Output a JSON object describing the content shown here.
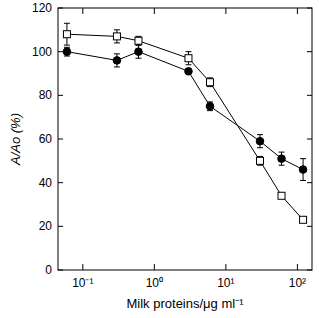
{
  "chart_data": {
    "type": "line",
    "x_label": "Milk proteins/μg ml⁻¹",
    "y_label": "A/Ao (%)",
    "log": "x",
    "xlim": [
      0.045,
      160
    ],
    "xticks": [
      {
        "value": 0.1,
        "label": "10⁻¹"
      },
      {
        "value": 1,
        "label": "10⁰"
      },
      {
        "value": 10,
        "label": "10¹"
      },
      {
        "value": 100,
        "label": "10²"
      }
    ],
    "ylim": [
      0,
      120
    ],
    "yticks": [
      0,
      20,
      40,
      60,
      80,
      100,
      120
    ],
    "x": [
      0.06,
      0.3,
      0.6,
      3,
      6,
      30,
      60,
      120
    ],
    "series": [
      {
        "color": "#000000",
        "marker": "square-open",
        "line_style": "solid",
        "values": [
          108,
          107,
          105,
          97,
          86,
          50,
          34,
          23
        ],
        "errors": [
          5,
          3,
          2,
          3,
          2,
          2,
          1,
          1
        ]
      },
      {
        "color": "#000000",
        "marker": "circle",
        "line_style": "solid",
        "values": [
          100,
          96,
          100,
          91,
          75,
          59,
          51,
          46
        ],
        "errors": [
          2,
          3,
          3,
          1,
          2,
          3,
          3,
          5
        ]
      }
    ]
  }
}
